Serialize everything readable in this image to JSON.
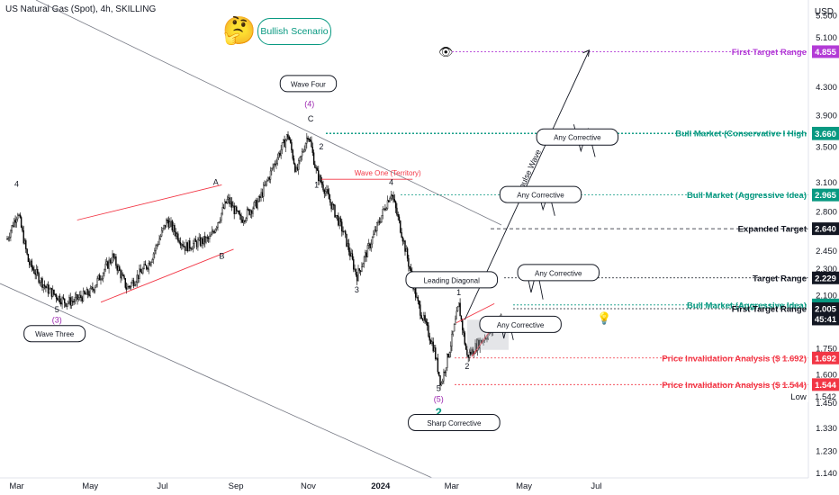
{
  "header": {
    "title": "US Natural Gas (Spot), 4h, SKILLING",
    "currency": "USD"
  },
  "badge": {
    "label": "Bullish Scenario",
    "emoji": "🤔",
    "eye": "👁",
    "bulb": "💡"
  },
  "chart_data": {
    "type": "candlestick-line",
    "title": "US Natural Gas (Spot), 4h, SKILLING",
    "y_scale": "log",
    "ylim": [
      1.12,
      5.8
    ],
    "y_ticks": [
      5.5,
      5.1,
      4.3,
      3.9,
      3.5,
      3.1,
      2.8,
      2.45,
      2.3,
      2.1,
      1.75,
      1.6,
      1.45,
      1.33,
      1.23,
      1.14
    ],
    "y_tick_labels": [
      "5.500",
      "5.100",
      "4.300",
      "3.900",
      "3.500",
      "3.100",
      "2.800",
      "2.450",
      "2.300",
      "2.100",
      "1.750",
      "1.600",
      "1.450",
      "1.330",
      "1.230",
      "1.140"
    ],
    "x_ticks": [
      "Mar",
      "May",
      "Jul",
      "Sep",
      "Nov",
      "2024",
      "Mar",
      "May",
      "Jul"
    ],
    "price_path": [
      [
        "2023-02-20",
        2.55
      ],
      [
        "2023-03-01",
        2.8
      ],
      [
        "2023-03-10",
        2.35
      ],
      [
        "2023-03-25",
        2.15
      ],
      [
        "2023-04-10",
        2.05
      ],
      [
        "2023-04-17",
        2.06
      ],
      [
        "2023-05-01",
        2.12
      ],
      [
        "2023-05-20",
        2.4
      ],
      [
        "2023-06-01",
        2.15
      ],
      [
        "2023-06-20",
        2.35
      ],
      [
        "2023-07-05",
        2.72
      ],
      [
        "2023-07-20",
        2.48
      ],
      [
        "2023-08-10",
        2.55
      ],
      [
        "2023-08-25",
        2.92
      ],
      [
        "2023-09-05",
        2.72
      ],
      [
        "2023-09-20",
        2.9
      ],
      [
        "2023-10-05",
        3.35
      ],
      [
        "2023-10-15",
        3.65
      ],
      [
        "2023-10-22",
        3.2
      ],
      [
        "2023-11-01",
        3.67
      ],
      [
        "2023-11-08",
        3.2
      ],
      [
        "2023-11-15",
        3.02
      ],
      [
        "2023-12-01",
        2.6
      ],
      [
        "2023-12-12",
        2.24
      ],
      [
        "2023-12-25",
        2.55
      ],
      [
        "2024-01-10",
        3.0
      ],
      [
        "2024-01-20",
        2.55
      ],
      [
        "2024-02-01",
        2.05
      ],
      [
        "2024-02-15",
        1.75
      ],
      [
        "2024-02-21",
        1.544
      ],
      [
        "2024-03-01",
        1.8
      ],
      [
        "2024-03-07",
        2.03
      ],
      [
        "2024-03-14",
        1.7
      ],
      [
        "2024-03-25",
        1.79
      ],
      [
        "2024-04-05",
        1.87
      ],
      [
        "2024-04-12",
        1.95
      ]
    ],
    "levels": [
      {
        "label": "First Target Range",
        "price_label": "4.855",
        "value": 4.855,
        "color": "#b33bd6",
        "style": "dotted"
      },
      {
        "label": "Bull Market (Conservative I High",
        "price_label": "3.668",
        "value": 3.668,
        "color": "#089981",
        "style": "dotted"
      },
      {
        "label": "",
        "price_label": "3.660",
        "value": 3.66,
        "color": "#089981",
        "style": "dotted"
      },
      {
        "label": "Bull Market (Aggressive Idea)",
        "price_label": "2.965",
        "value": 2.965,
        "color": "#089981",
        "style": "dotted"
      },
      {
        "label": "Expanded Target",
        "price_label": "2.640",
        "value": 2.64,
        "color": "#131722",
        "style": "dashed"
      },
      {
        "label": "Target Range",
        "price_label": "2.229",
        "value": 2.229,
        "color": "#131722",
        "style": "dotted"
      },
      {
        "label": "Bull Market (Aggressive Idea)",
        "price_label": "2.031",
        "value": 2.031,
        "color": "#089981",
        "style": "dotted"
      },
      {
        "label": "First Target Range",
        "price_label": "2.005",
        "value": 2.005,
        "color": "#131722",
        "style": "dotted"
      },
      {
        "label": "",
        "price_label": "45:41",
        "value": 1.935,
        "color": "#131722",
        "style": "none"
      },
      {
        "label": "Price Invalidation Analysis ($ 1.692)",
        "price_label": "1.692",
        "value": 1.692,
        "color": "#f23645",
        "style": "dotted"
      },
      {
        "label": "Price Invalidation Analysis ($ 1.544)",
        "price_label": "1.544",
        "value": 1.544,
        "color": "#f23645",
        "style": "dotted"
      }
    ],
    "low_label": "Low",
    "low_value": "1.542",
    "wave_labels": [
      {
        "text": "4",
        "d": "2023-02-28",
        "p": 3.05,
        "color": "#131722"
      },
      {
        "text": "5",
        "d": "2023-04-03",
        "p": 1.98,
        "color": "#131722"
      },
      {
        "text": "(3)",
        "d": "2023-04-03",
        "p": 1.91,
        "color": "#9c27b0"
      },
      {
        "text": "A",
        "d": "2023-08-15",
        "p": 3.07,
        "color": "#131722"
      },
      {
        "text": "B",
        "d": "2023-08-20",
        "p": 2.38,
        "color": "#131722"
      },
      {
        "text": "(4)",
        "d": "2023-11-02",
        "p": 4.02,
        "color": "#9c27b0"
      },
      {
        "text": "C",
        "d": "2023-11-03",
        "p": 3.82,
        "color": "#131722"
      },
      {
        "text": "2",
        "d": "2023-11-12",
        "p": 3.47,
        "color": "#131722"
      },
      {
        "text": "1",
        "d": "2023-11-08",
        "p": 3.04,
        "color": "#131722"
      },
      {
        "text": "4",
        "d": "2024-01-10",
        "p": 3.07,
        "color": "#131722"
      },
      {
        "text": "3",
        "d": "2023-12-12",
        "p": 2.12,
        "color": "#131722"
      },
      {
        "text": "1",
        "d": "2024-03-07",
        "p": 2.1,
        "color": "#131722"
      },
      {
        "text": "2",
        "d": "2024-03-14",
        "p": 1.63,
        "color": "#131722"
      },
      {
        "text": "5",
        "d": "2024-02-19",
        "p": 1.51,
        "color": "#131722"
      },
      {
        "text": "(5)",
        "d": "2024-02-19",
        "p": 1.455,
        "color": "#9c27b0"
      },
      {
        "text": "2",
        "d": "2024-02-19",
        "p": 1.385,
        "color": "#089981"
      }
    ],
    "boxes": [
      {
        "text": "Wave Four",
        "d": "2023-11-01",
        "p": 4.35
      },
      {
        "text": "Wave Three",
        "d": "2023-04-01",
        "p": 1.84
      },
      {
        "text": "Leading Diagonal",
        "d": "2024-03-01",
        "p": 2.215
      },
      {
        "text": "Sharp Corrective",
        "d": "2024-03-03",
        "p": 1.355
      },
      {
        "text": "Any Corrective",
        "d": "2024-06-15",
        "p": 3.62
      },
      {
        "text": "Any Corrective",
        "d": "2024-05-15",
        "p": 2.97
      },
      {
        "text": "Any Corrective",
        "d": "2024-05-30",
        "p": 2.27
      },
      {
        "text": "Any Corrective",
        "d": "2024-04-28",
        "p": 1.9
      }
    ],
    "annotations": [
      {
        "text": "Wave One (Territory)",
        "color": "#f23645"
      },
      {
        "text": "Impulse Wave",
        "color": "#131722"
      }
    ]
  }
}
